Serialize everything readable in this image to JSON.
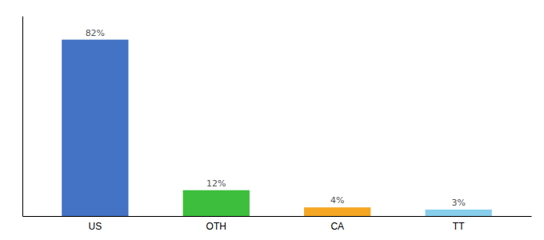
{
  "chart_data": {
    "type": "bar",
    "categories": [
      "US",
      "OTH",
      "CA",
      "TT"
    ],
    "values": [
      82,
      12,
      4,
      3
    ],
    "value_labels": [
      "82%",
      "12%",
      "4%",
      "3%"
    ],
    "colors": [
      "#4472C4",
      "#3DBF3D",
      "#F5A623",
      "#87CEEB"
    ],
    "ylim": [
      0,
      93
    ],
    "grid": false,
    "data_labels": true,
    "tick_labels": "x"
  }
}
